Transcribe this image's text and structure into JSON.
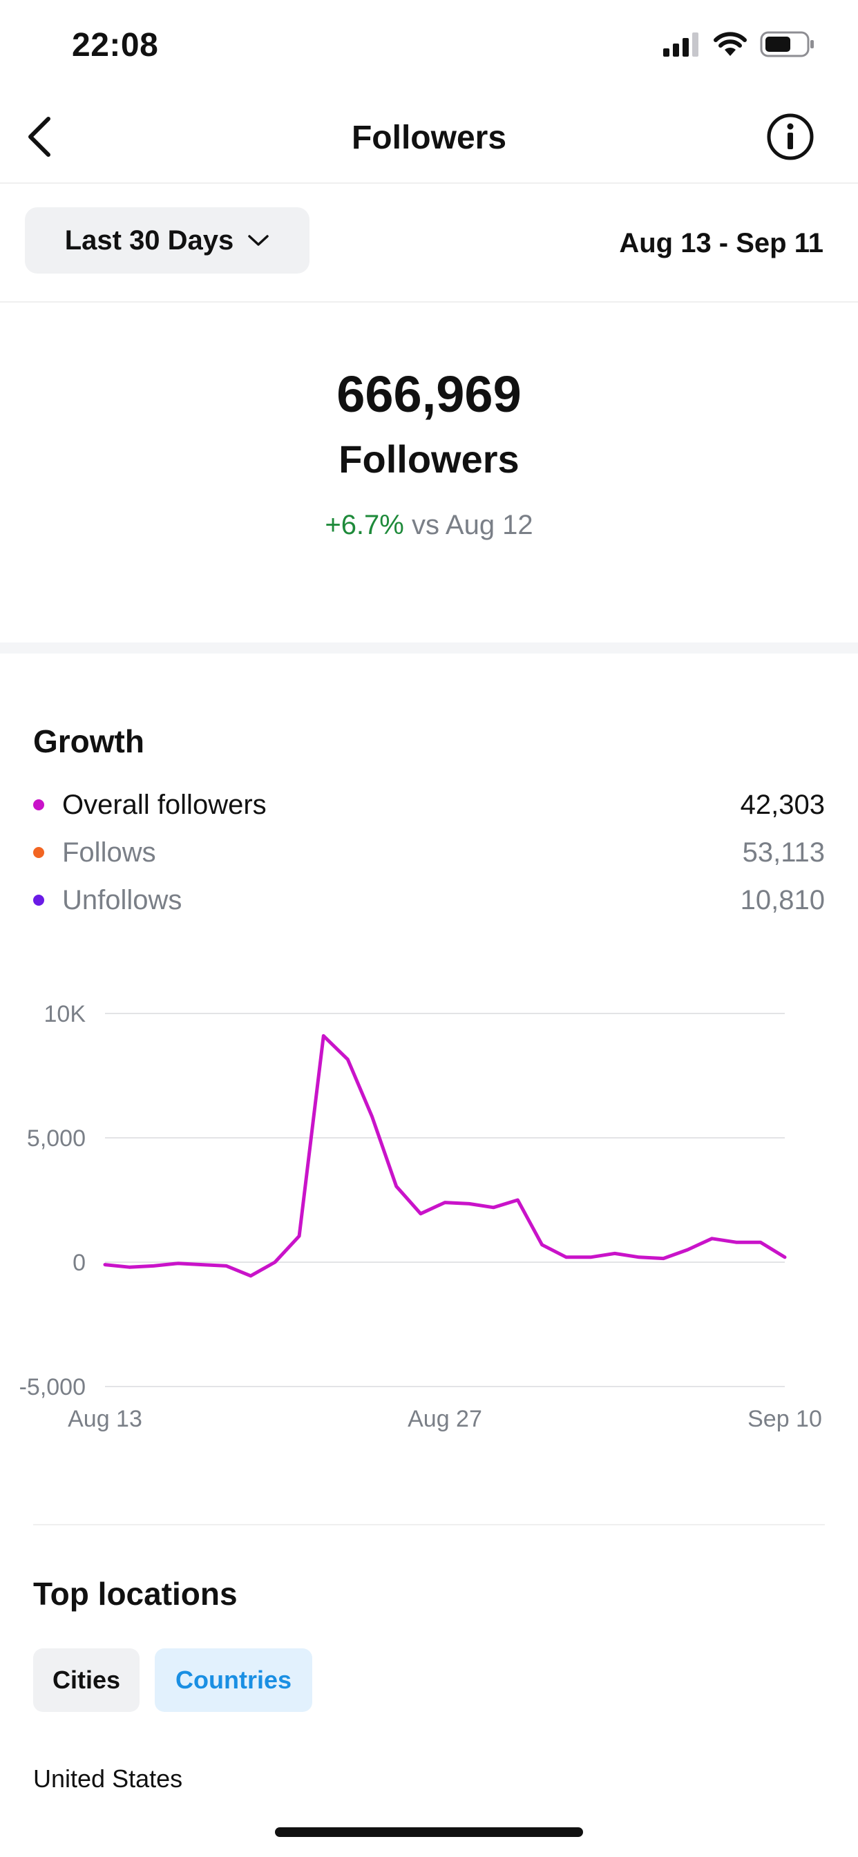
{
  "status": {
    "time": "22:08"
  },
  "header": {
    "title": "Followers"
  },
  "range": {
    "label": "Last 30 Days",
    "dates": "Aug 13 - Sep 11"
  },
  "summary": {
    "total": "666,969",
    "label": "Followers",
    "change": "+6.7%",
    "compare": "vs Aug 12"
  },
  "growth": {
    "title": "Growth",
    "legend": [
      {
        "name": "Overall followers",
        "value": "42,303",
        "color": "#c913c9"
      },
      {
        "name": "Follows",
        "value": "53,113",
        "color": "#f26522"
      },
      {
        "name": "Unfollows",
        "value": "10,810",
        "color": "#6a1be6"
      }
    ]
  },
  "chart_data": {
    "type": "line",
    "ylim": [
      -5000,
      10000
    ],
    "y_ticks": [
      {
        "label": "10K",
        "value": 10000
      },
      {
        "label": "5,000",
        "value": 5000
      },
      {
        "label": "0",
        "value": 0
      },
      {
        "label": "-5,000",
        "value": -5000
      }
    ],
    "x_ticks": [
      {
        "label": "Aug 13",
        "index": 0
      },
      {
        "label": "Aug 27",
        "index": 14
      },
      {
        "label": "Sep 10",
        "index": 28
      }
    ],
    "grid": true,
    "series": [
      {
        "name": "Overall followers",
        "color": "#c913c9",
        "values": [
          -100,
          -200,
          -150,
          -50,
          -100,
          -150,
          -550,
          0,
          1050,
          9100,
          8150,
          5850,
          3050,
          1950,
          2400,
          2350,
          2200,
          2500,
          700,
          200,
          200,
          350,
          200,
          150,
          500,
          950,
          800,
          800,
          200
        ]
      }
    ]
  },
  "locations": {
    "title": "Top locations",
    "tab_cities": "Cities",
    "tab_countries": "Countries",
    "first_item": "United States"
  }
}
